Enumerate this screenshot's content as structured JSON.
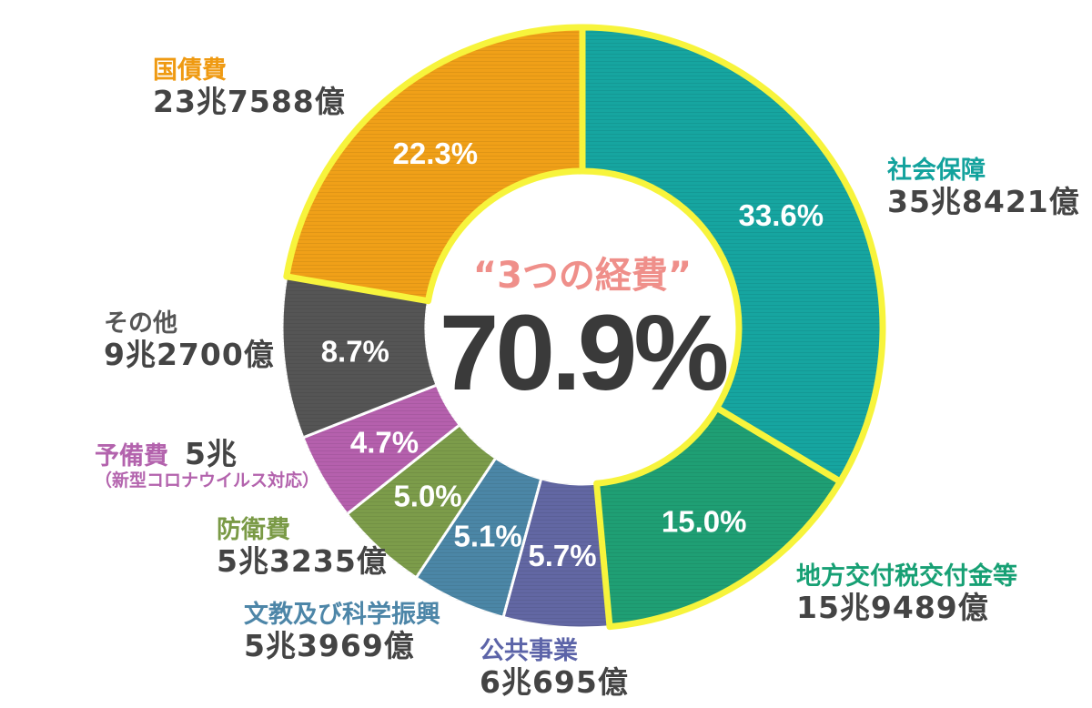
{
  "chart_data": {
    "type": "pie",
    "center": {
      "title": "“3つの経費”",
      "value": "70.9%"
    },
    "slices": [
      {
        "name": "社会保障",
        "amount": "35兆8421億",
        "percent_label": "33.6%",
        "value": 33.6,
        "color": "#16a5a0",
        "label_color": "#13a29d",
        "highlight": true
      },
      {
        "name": "地方交付税交付金等",
        "amount": "15兆9489億",
        "percent_label": "15.0%",
        "value": 15.0,
        "color": "#1f9f74",
        "label_color": "#17a074",
        "highlight": true
      },
      {
        "name": "公共事業",
        "amount": "6兆695億",
        "percent_label": "5.7%",
        "value": 5.7,
        "color": "#6267a3",
        "label_color": "#5c64a8",
        "highlight": false
      },
      {
        "name": "文教及び科学振興",
        "amount": "5兆3969億",
        "percent_label": "5.1%",
        "value": 5.1,
        "color": "#4b86a6",
        "label_color": "#4d86a8",
        "highlight": false
      },
      {
        "name": "防衛費",
        "amount": "5兆3235億",
        "percent_label": "5.0%",
        "value": 5.0,
        "color": "#7c9c4a",
        "label_color": "#7a9a46",
        "highlight": false
      },
      {
        "name": "予備費",
        "amount": "5兆",
        "note": "（新型コロナウイルス対応）",
        "percent_label": "4.7%",
        "value": 4.7,
        "color": "#b560ad",
        "label_color": "#b363ad",
        "highlight": false
      },
      {
        "name": "その他",
        "amount": "9兆2700億",
        "percent_label": "8.7%",
        "value": 8.7,
        "color": "#555555",
        "label_color": "#555555",
        "highlight": false
      },
      {
        "name": "国債費",
        "amount": "23兆7588億",
        "percent_label": "22.3%",
        "value": 22.3,
        "color": "#f0a018",
        "label_color": "#ef9a12",
        "highlight": true
      }
    ],
    "highlight_color": "#f7f43c"
  }
}
